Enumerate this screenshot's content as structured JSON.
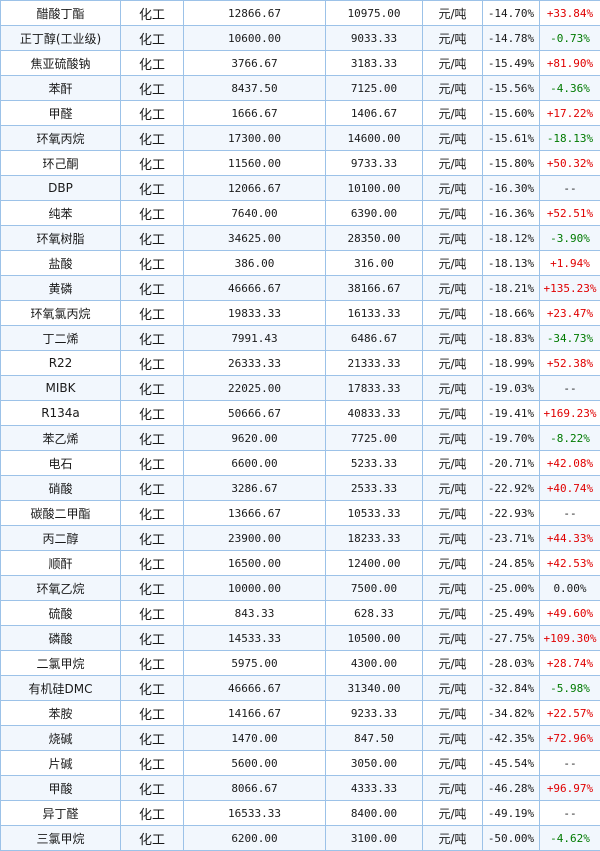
{
  "rows": [
    {
      "name": "醋酸丁酯",
      "category": "化工",
      "price_a": "12866.67",
      "price_b": "10975.00",
      "unit": "元/吨",
      "change": "-14.70%",
      "yoy": "+33.84%"
    },
    {
      "name": "正丁醇(工业级)",
      "category": "化工",
      "price_a": "10600.00",
      "price_b": "9033.33",
      "unit": "元/吨",
      "change": "-14.78%",
      "yoy": "-0.73%"
    },
    {
      "name": "焦亚硫酸钠",
      "category": "化工",
      "price_a": "3766.67",
      "price_b": "3183.33",
      "unit": "元/吨",
      "change": "-15.49%",
      "yoy": "+81.90%"
    },
    {
      "name": "苯酐",
      "category": "化工",
      "price_a": "8437.50",
      "price_b": "7125.00",
      "unit": "元/吨",
      "change": "-15.56%",
      "yoy": "-4.36%"
    },
    {
      "name": "甲醛",
      "category": "化工",
      "price_a": "1666.67",
      "price_b": "1406.67",
      "unit": "元/吨",
      "change": "-15.60%",
      "yoy": "+17.22%"
    },
    {
      "name": "环氧丙烷",
      "category": "化工",
      "price_a": "17300.00",
      "price_b": "14600.00",
      "unit": "元/吨",
      "change": "-15.61%",
      "yoy": "-18.13%"
    },
    {
      "name": "环己酮",
      "category": "化工",
      "price_a": "11560.00",
      "price_b": "9733.33",
      "unit": "元/吨",
      "change": "-15.80%",
      "yoy": "+50.32%"
    },
    {
      "name": "DBP",
      "category": "化工",
      "price_a": "12066.67",
      "price_b": "10100.00",
      "unit": "元/吨",
      "change": "-16.30%",
      "yoy": "--"
    },
    {
      "name": "纯苯",
      "category": "化工",
      "price_a": "7640.00",
      "price_b": "6390.00",
      "unit": "元/吨",
      "change": "-16.36%",
      "yoy": "+52.51%"
    },
    {
      "name": "环氧树脂",
      "category": "化工",
      "price_a": "34625.00",
      "price_b": "28350.00",
      "unit": "元/吨",
      "change": "-18.12%",
      "yoy": "-3.90%"
    },
    {
      "name": "盐酸",
      "category": "化工",
      "price_a": "386.00",
      "price_b": "316.00",
      "unit": "元/吨",
      "change": "-18.13%",
      "yoy": "+1.94%"
    },
    {
      "name": "黄磷",
      "category": "化工",
      "price_a": "46666.67",
      "price_b": "38166.67",
      "unit": "元/吨",
      "change": "-18.21%",
      "yoy": "+135.23%"
    },
    {
      "name": "环氧氯丙烷",
      "category": "化工",
      "price_a": "19833.33",
      "price_b": "16133.33",
      "unit": "元/吨",
      "change": "-18.66%",
      "yoy": "+23.47%"
    },
    {
      "name": "丁二烯",
      "category": "化工",
      "price_a": "7991.43",
      "price_b": "6486.67",
      "unit": "元/吨",
      "change": "-18.83%",
      "yoy": "-34.73%"
    },
    {
      "name": "R22",
      "category": "化工",
      "price_a": "26333.33",
      "price_b": "21333.33",
      "unit": "元/吨",
      "change": "-18.99%",
      "yoy": "+52.38%"
    },
    {
      "name": "MIBK",
      "category": "化工",
      "price_a": "22025.00",
      "price_b": "17833.33",
      "unit": "元/吨",
      "change": "-19.03%",
      "yoy": "--"
    },
    {
      "name": "R134a",
      "category": "化工",
      "price_a": "50666.67",
      "price_b": "40833.33",
      "unit": "元/吨",
      "change": "-19.41%",
      "yoy": "+169.23%"
    },
    {
      "name": "苯乙烯",
      "category": "化工",
      "price_a": "9620.00",
      "price_b": "7725.00",
      "unit": "元/吨",
      "change": "-19.70%",
      "yoy": "-8.22%"
    },
    {
      "name": "电石",
      "category": "化工",
      "price_a": "6600.00",
      "price_b": "5233.33",
      "unit": "元/吨",
      "change": "-20.71%",
      "yoy": "+42.08%"
    },
    {
      "name": "硝酸",
      "category": "化工",
      "price_a": "3286.67",
      "price_b": "2533.33",
      "unit": "元/吨",
      "change": "-22.92%",
      "yoy": "+40.74%"
    },
    {
      "name": "碳酸二甲酯",
      "category": "化工",
      "price_a": "13666.67",
      "price_b": "10533.33",
      "unit": "元/吨",
      "change": "-22.93%",
      "yoy": "--"
    },
    {
      "name": "丙二醇",
      "category": "化工",
      "price_a": "23900.00",
      "price_b": "18233.33",
      "unit": "元/吨",
      "change": "-23.71%",
      "yoy": "+44.33%"
    },
    {
      "name": "顺酐",
      "category": "化工",
      "price_a": "16500.00",
      "price_b": "12400.00",
      "unit": "元/吨",
      "change": "-24.85%",
      "yoy": "+42.53%"
    },
    {
      "name": "环氧乙烷",
      "category": "化工",
      "price_a": "10000.00",
      "price_b": "7500.00",
      "unit": "元/吨",
      "change": "-25.00%",
      "yoy": "0.00%"
    },
    {
      "name": "硫酸",
      "category": "化工",
      "price_a": "843.33",
      "price_b": "628.33",
      "unit": "元/吨",
      "change": "-25.49%",
      "yoy": "+49.60%"
    },
    {
      "name": "磷酸",
      "category": "化工",
      "price_a": "14533.33",
      "price_b": "10500.00",
      "unit": "元/吨",
      "change": "-27.75%",
      "yoy": "+109.30%"
    },
    {
      "name": "二氯甲烷",
      "category": "化工",
      "price_a": "5975.00",
      "price_b": "4300.00",
      "unit": "元/吨",
      "change": "-28.03%",
      "yoy": "+28.74%"
    },
    {
      "name": "有机硅DMC",
      "category": "化工",
      "price_a": "46666.67",
      "price_b": "31340.00",
      "unit": "元/吨",
      "change": "-32.84%",
      "yoy": "-5.98%"
    },
    {
      "name": "苯胺",
      "category": "化工",
      "price_a": "14166.67",
      "price_b": "9233.33",
      "unit": "元/吨",
      "change": "-34.82%",
      "yoy": "+22.57%"
    },
    {
      "name": "烧碱",
      "category": "化工",
      "price_a": "1470.00",
      "price_b": "847.50",
      "unit": "元/吨",
      "change": "-42.35%",
      "yoy": "+72.96%"
    },
    {
      "name": "片碱",
      "category": "化工",
      "price_a": "5600.00",
      "price_b": "3050.00",
      "unit": "元/吨",
      "change": "-45.54%",
      "yoy": "--"
    },
    {
      "name": "甲酸",
      "category": "化工",
      "price_a": "8066.67",
      "price_b": "4333.33",
      "unit": "元/吨",
      "change": "-46.28%",
      "yoy": "+96.97%"
    },
    {
      "name": "异丁醛",
      "category": "化工",
      "price_a": "16533.33",
      "price_b": "8400.00",
      "unit": "元/吨",
      "change": "-49.19%",
      "yoy": "--"
    },
    {
      "name": "三氯甲烷",
      "category": "化工",
      "price_a": "6200.00",
      "price_b": "3100.00",
      "unit": "元/吨",
      "change": "-50.00%",
      "yoy": "-4.62%"
    }
  ]
}
